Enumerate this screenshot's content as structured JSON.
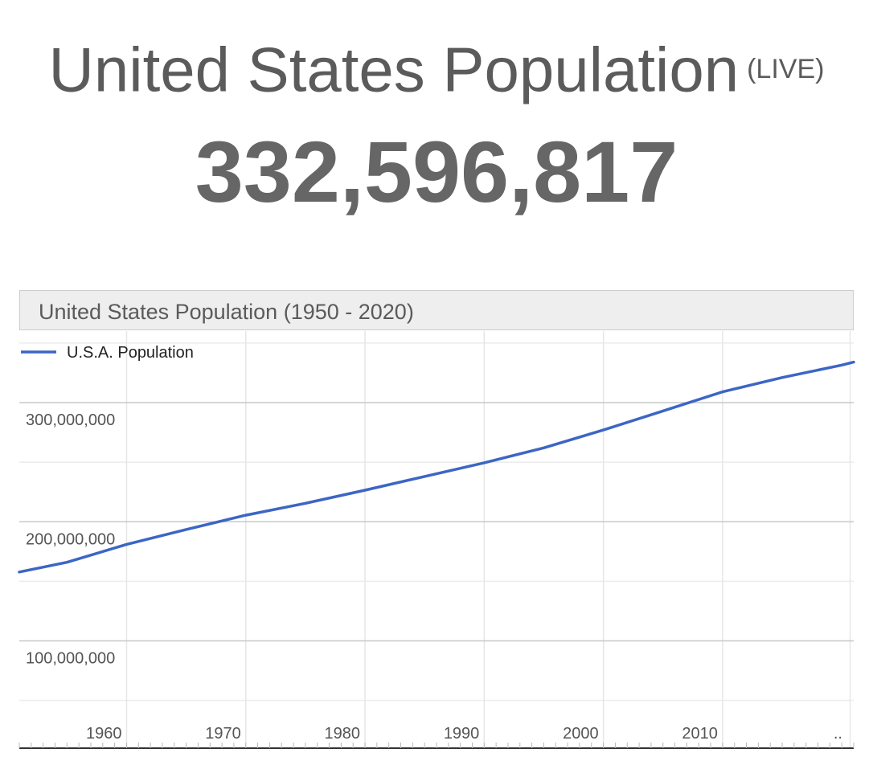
{
  "header": {
    "title": "United States Population",
    "live_tag": "(LIVE)",
    "live_count": "332,596,817"
  },
  "chart_data": {
    "type": "line",
    "title": "United States Population (1950 - 2020)",
    "xlabel": "",
    "ylabel": "",
    "legend": "top-left",
    "grid": true,
    "xlim": [
      1951,
      2021
    ],
    "ylim": [
      10000000,
      360000000
    ],
    "x_ticks": [
      1960,
      1970,
      1980,
      1990,
      2000,
      2010
    ],
    "x_tick_labels": [
      "1960",
      "1970",
      "1980",
      "1990",
      "2000",
      "2010"
    ],
    "x_trailing_label": "..",
    "y_ticks": [
      100000000,
      200000000,
      300000000
    ],
    "y_tick_labels": [
      "100,000,000",
      "200,000,000",
      "300,000,000"
    ],
    "series": [
      {
        "name": "U.S.A. Population",
        "color": "#3c66c4",
        "x": [
          1951,
          1955,
          1960,
          1965,
          1970,
          1975,
          1980,
          1985,
          1990,
          1995,
          2000,
          2005,
          2010,
          2015,
          2020,
          2021
        ],
        "y": [
          157800000,
          166000000,
          181000000,
          193500000,
          205500000,
          215500000,
          226500000,
          238000000,
          249500000,
          262000000,
          277000000,
          293000000,
          309000000,
          321000000,
          331500000,
          334000000
        ]
      }
    ]
  }
}
